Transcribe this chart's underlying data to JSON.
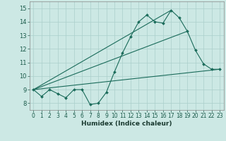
{
  "xlabel": "Humidex (Indice chaleur)",
  "xlim": [
    -0.5,
    23.5
  ],
  "ylim": [
    7.5,
    15.5
  ],
  "xticks": [
    0,
    1,
    2,
    3,
    4,
    5,
    6,
    7,
    8,
    9,
    10,
    11,
    12,
    13,
    14,
    15,
    16,
    17,
    18,
    19,
    20,
    21,
    22,
    23
  ],
  "yticks": [
    8,
    9,
    10,
    11,
    12,
    13,
    14,
    15
  ],
  "bg_color": "#cce8e4",
  "line_color": "#1a6b5a",
  "grid_color": "#aacfcb",
  "main_x": [
    0,
    1,
    2,
    3,
    4,
    5,
    6,
    7,
    8,
    9,
    10,
    11,
    12,
    13,
    14,
    15,
    16,
    17,
    18,
    19,
    20,
    21,
    22,
    23
  ],
  "main_y": [
    9.0,
    8.5,
    9.0,
    8.7,
    8.4,
    9.0,
    9.0,
    7.9,
    8.0,
    8.8,
    10.3,
    11.7,
    12.9,
    14.0,
    14.5,
    14.0,
    13.9,
    14.85,
    14.3,
    13.3,
    11.9,
    10.9,
    10.5,
    10.5
  ],
  "trend1_x": [
    0,
    23
  ],
  "trend1_y": [
    9.0,
    10.5
  ],
  "trend2_x": [
    0,
    19
  ],
  "trend2_y": [
    9.0,
    13.3
  ],
  "trend3_x": [
    0,
    17
  ],
  "trend3_y": [
    9.0,
    14.85
  ],
  "tick_fontsize": 5.5,
  "xlabel_fontsize": 6.5
}
